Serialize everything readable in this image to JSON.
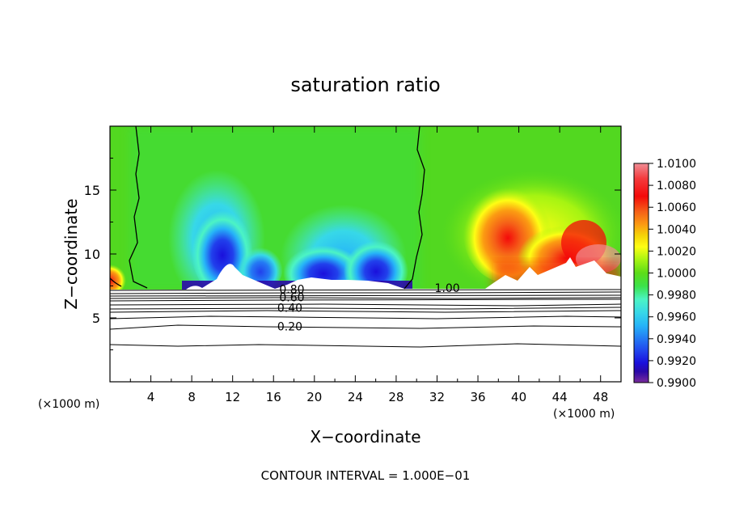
{
  "chart_data": {
    "type": "heatmap",
    "title": "saturation ratio",
    "xlabel": "X−coordinate",
    "ylabel": "Z−coordinate",
    "x_unit_left": "(×1000 m)",
    "x_unit_right": "(×1000 m)",
    "footer": "CONTOUR INTERVAL = 1.000E−01",
    "xlim": [
      0,
      50
    ],
    "ylim": [
      0,
      20
    ],
    "x_ticks": [
      4,
      8,
      12,
      16,
      20,
      24,
      28,
      32,
      36,
      40,
      44,
      48
    ],
    "y_ticks": [
      5,
      10,
      15
    ],
    "colorbar": {
      "min": 0.99,
      "max": 1.01,
      "tick_labels": [
        "1.0100",
        "1.0080",
        "1.0060",
        "1.0040",
        "1.0020",
        "1.0000",
        "0.9980",
        "0.9960",
        "0.9940",
        "0.9920",
        "0.9900"
      ],
      "colors": [
        "#f08e96",
        "#f43a3c",
        "#f40a0a",
        "#f56018",
        "#fb9c12",
        "#f5d408",
        "#fefe14",
        "#a6f412",
        "#5cdc18",
        "#3be24a",
        "#4cf4c4",
        "#37d8e8",
        "#26b4f8",
        "#2479f4",
        "#2140ec",
        "#1a10dc",
        "#2a08a8",
        "#5a1696",
        "#7a2c9c"
      ]
    },
    "contour_labels": [
      {
        "text": "1.00",
        "x": 33.0,
        "z": 7.35
      },
      {
        "text": "0.80",
        "x": 17.8,
        "z": 7.25
      },
      {
        "text": "0.60",
        "x": 17.8,
        "z": 6.6
      },
      {
        "text": "0.40",
        "x": 17.6,
        "z": 5.8
      },
      {
        "text": "0.20",
        "x": 17.6,
        "z": 4.35
      }
    ]
  }
}
